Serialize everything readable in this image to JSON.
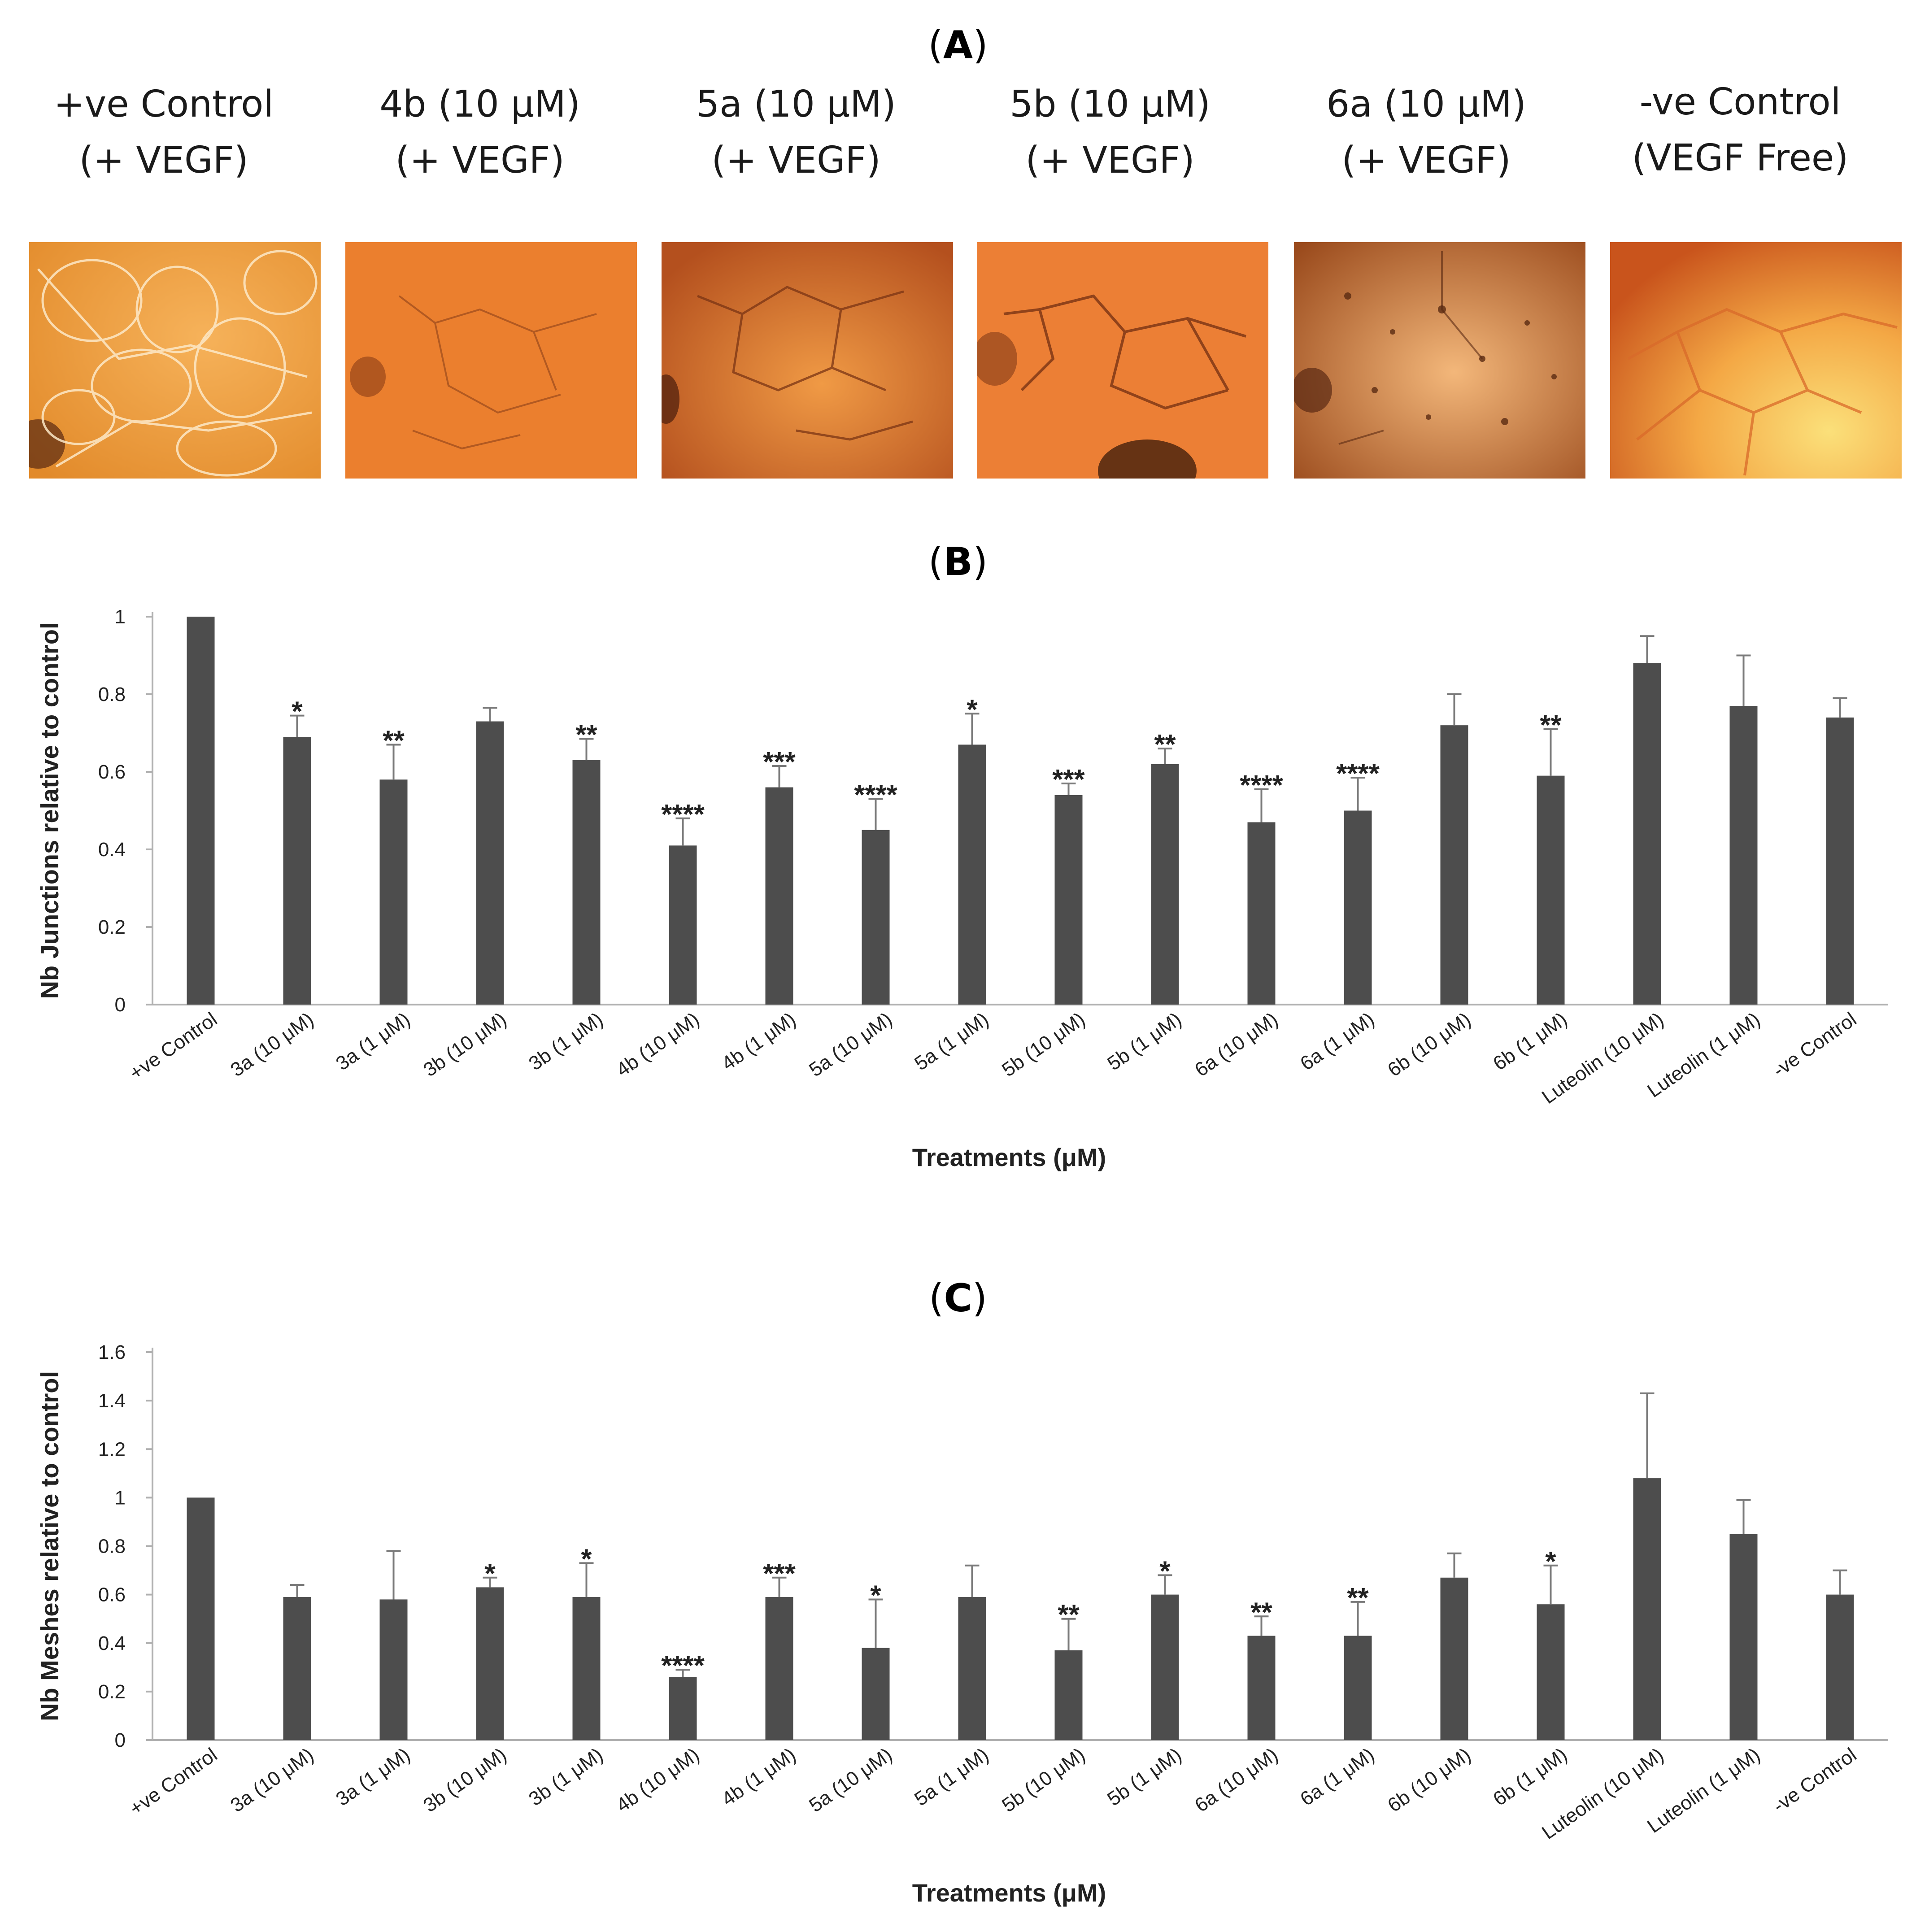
{
  "figure": {
    "panel_a_label": "A",
    "panel_b_label": "B",
    "panel_c_label": "C",
    "images": [
      {
        "line1": "+ve Control",
        "line2": "(+ VEGF)"
      },
      {
        "line1": "4b (10 μM)",
        "line2": "(+ VEGF)"
      },
      {
        "line1": "5a (10 μM)",
        "line2": "(+ VEGF)"
      },
      {
        "line1": "5b (10 μM)",
        "line2": "(+ VEGF)"
      },
      {
        "line1": "6a (10 μM)",
        "line2": "(+ VEGF)"
      },
      {
        "line1": "-ve Control",
        "line2": "(VEGF Free)"
      }
    ]
  },
  "chart_data": [
    {
      "type": "bar",
      "title": "(B)",
      "xlabel": "Treatments (μM)",
      "ylabel": "Nb Junctions relative to control",
      "ylim": [
        0,
        1
      ],
      "yticks": [
        0,
        0.2,
        0.4,
        0.6,
        0.8,
        1
      ],
      "ytick_labels": [
        "0",
        "0.2",
        "0.4",
        "0.6",
        "0.8",
        "1"
      ],
      "categories": [
        "+ve Control",
        "3a (10 μM)",
        "3a (1 μM)",
        "3b (10 μM)",
        "3b (1 μM)",
        "4b (10 μM)",
        "4b (1 μM)",
        "5a (10 μM)",
        "5a (1 μM)",
        "5b (10 μM)",
        "5b (1 μM)",
        "6a (10 μM)",
        "6a (1 μM)",
        "6b (10 μM)",
        "6b (1 μM)",
        "Luteolin (10 μM)",
        "Luteolin (1 μM)",
        "-ve Control"
      ],
      "values": [
        1.0,
        0.69,
        0.58,
        0.73,
        0.63,
        0.41,
        0.56,
        0.45,
        0.67,
        0.54,
        0.62,
        0.47,
        0.5,
        0.72,
        0.59,
        0.88,
        0.77,
        0.74
      ],
      "errors": [
        0.0,
        0.055,
        0.09,
        0.035,
        0.055,
        0.07,
        0.055,
        0.08,
        0.08,
        0.03,
        0.04,
        0.085,
        0.085,
        0.08,
        0.12,
        0.07,
        0.13,
        0.05
      ],
      "significance": [
        "",
        "*",
        "**",
        "",
        "**",
        "****",
        "***",
        "****",
        "*",
        "***",
        "**",
        "****",
        "****",
        "",
        "**",
        "",
        "",
        ""
      ]
    },
    {
      "type": "bar",
      "title": "(C)",
      "xlabel": "Treatments (μM)",
      "ylabel": "Nb Meshes relative to control",
      "ylim": [
        0,
        1.6
      ],
      "yticks": [
        0,
        0.2,
        0.4,
        0.6,
        0.8,
        1,
        1.2,
        1.4,
        1.6
      ],
      "ytick_labels": [
        "0",
        "0.2",
        "0.4",
        "0.6",
        "0.8",
        "1",
        "1.2",
        "1.4",
        "1.6"
      ],
      "categories": [
        "+ve Control",
        "3a (10 μM)",
        "3a (1 μM)",
        "3b (10 μM)",
        "3b (1 μM)",
        "4b (10 μM)",
        "4b (1 μM)",
        "5a (10 μM)",
        "5a (1 μM)",
        "5b (10 μM)",
        "5b (1 μM)",
        "6a (10 μM)",
        "6a (1 μM)",
        "6b (10 μM)",
        "6b (1 μM)",
        "Luteolin (10 μM)",
        "Luteolin (1 μM)",
        "-ve Control"
      ],
      "values": [
        1.0,
        0.59,
        0.58,
        0.63,
        0.59,
        0.26,
        0.59,
        0.38,
        0.59,
        0.37,
        0.6,
        0.43,
        0.43,
        0.67,
        0.56,
        1.08,
        0.85,
        0.6
      ],
      "errors": [
        0.0,
        0.05,
        0.2,
        0.04,
        0.14,
        0.03,
        0.08,
        0.2,
        0.13,
        0.13,
        0.08,
        0.08,
        0.14,
        0.1,
        0.16,
        0.35,
        0.14,
        0.1
      ],
      "significance": [
        "",
        "",
        "",
        "*",
        "*",
        "****",
        "***",
        "*",
        "",
        "**",
        "*",
        "**",
        "**",
        "",
        "*",
        "",
        "",
        ""
      ]
    }
  ]
}
